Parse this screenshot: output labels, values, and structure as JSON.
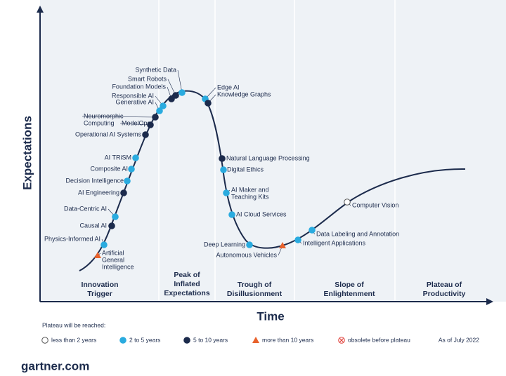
{
  "title_axis_y": "Expectations",
  "title_axis_x": "Time",
  "phases": [
    [
      "Innovation",
      "Trigger"
    ],
    [
      "Peak of",
      "Inflated",
      "Expectations"
    ],
    [
      "Trough of",
      "Disillusionment"
    ],
    [
      "Slope of",
      "Enlightenment"
    ],
    [
      "Plateau of",
      "Productivity"
    ]
  ],
  "nodes": [
    {
      "label": [
        "Synthetic Data"
      ],
      "color": "#2aabdf",
      "marker": "circle"
    },
    {
      "label": [
        "Smart Robots"
      ],
      "color": "#1c2b4c",
      "marker": "circle"
    },
    {
      "label": [
        "Foundation Models"
      ],
      "color": "#1c2b4c",
      "marker": "circle"
    },
    {
      "label": [
        "Responsible AI"
      ],
      "color": "#2aabdf",
      "marker": "circle"
    },
    {
      "label": [
        "Generative AI"
      ],
      "color": "#2aabdf",
      "marker": "circle"
    },
    {
      "label": [
        "Neuromorphic",
        "Computing"
      ],
      "color": "#1c2b4c",
      "marker": "circle"
    },
    {
      "label": [
        "ModelOps"
      ],
      "color": "#1c2b4c",
      "marker": "circle"
    },
    {
      "label": [
        "Operational AI Systems"
      ],
      "color": "#1c2b4c",
      "marker": "circle"
    },
    {
      "label": [
        "AI TRiSM"
      ],
      "color": "#2aabdf",
      "marker": "circle"
    },
    {
      "label": [
        "Composite AI"
      ],
      "color": "#2aabdf",
      "marker": "circle"
    },
    {
      "label": [
        "Decision Intelligence"
      ],
      "color": "#2aabdf",
      "marker": "circle"
    },
    {
      "label": [
        "AI Engineering"
      ],
      "color": "#1c2b4c",
      "marker": "circle"
    },
    {
      "label": [
        "Data-Centric AI"
      ],
      "color": "#2aabdf",
      "marker": "circle"
    },
    {
      "label": [
        "Causal AI"
      ],
      "color": "#1c2b4c",
      "marker": "circle"
    },
    {
      "label": [
        "Physics-Informed AI"
      ],
      "color": "#2aabdf",
      "marker": "circle"
    },
    {
      "label": [
        "Artificial",
        "General",
        "Intelligence"
      ],
      "color": "#e8622c",
      "marker": "triangle"
    },
    {
      "label": [
        "Edge AI"
      ],
      "color": "#2aabdf",
      "marker": "circle"
    },
    {
      "label": [
        "Knowledge Graphs"
      ],
      "color": "#1c2b4c",
      "marker": "circle"
    },
    {
      "label": [
        "Natural Language Processing"
      ],
      "color": "#1c2b4c",
      "marker": "circle"
    },
    {
      "label": [
        "Digital Ethics"
      ],
      "color": "#2aabdf",
      "marker": "circle"
    },
    {
      "label": [
        "AI Maker and",
        "Teaching Kits"
      ],
      "color": "#2aabdf",
      "marker": "circle"
    },
    {
      "label": [
        "AI Cloud Services"
      ],
      "color": "#2aabdf",
      "marker": "circle"
    },
    {
      "label": [
        "Deep Learning"
      ],
      "color": "#2aabdf",
      "marker": "circle"
    },
    {
      "label": [
        "Autonomous Vehicles"
      ],
      "color": "#e8622c",
      "marker": "triangle"
    },
    {
      "label": [
        "Data Labeling and Annotation"
      ],
      "color": "#2aabdf",
      "marker": "circle"
    },
    {
      "label": [
        "Intelligent Applications"
      ],
      "color": "#2aabdf",
      "marker": "circle"
    },
    {
      "label": [
        "Computer Vision"
      ],
      "color": "#ffffff",
      "marker": "circle"
    }
  ],
  "legend": {
    "title": "Plateau will be reached:",
    "items": [
      {
        "label": "less than 2 years",
        "color": "#ffffff",
        "marker": "circle"
      },
      {
        "label": "2 to 5 years",
        "color": "#2aabdf",
        "marker": "circle"
      },
      {
        "label": "5 to 10 years",
        "color": "#1c2b4c",
        "marker": "circle"
      },
      {
        "label": "more than 10 years",
        "color": "#e8622c",
        "marker": "triangle"
      },
      {
        "label": "obsolete before plateau",
        "color": "#e0403a",
        "marker": "crossed"
      }
    ],
    "date": "As of July 2022"
  },
  "footer": "gartner.com"
}
